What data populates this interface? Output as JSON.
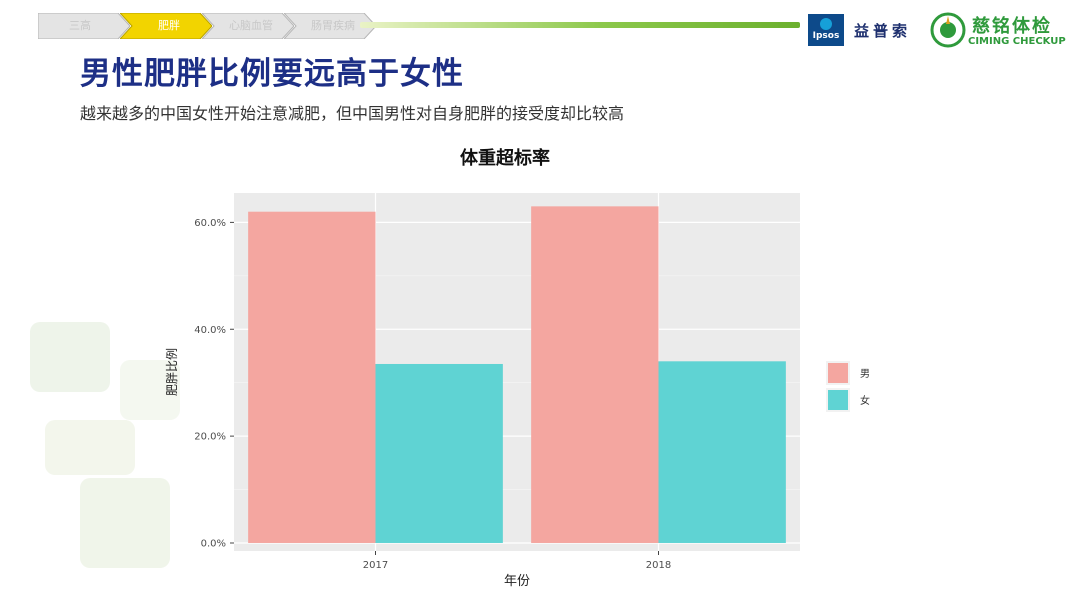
{
  "nav": {
    "steps": [
      {
        "label": "三高",
        "active": false
      },
      {
        "label": "肥胖",
        "active": true
      },
      {
        "label": "心脑血管",
        "active": false
      },
      {
        "label": "肠胃疾病",
        "active": false
      }
    ]
  },
  "logos": {
    "ipsos_text": "Ipsos",
    "ipsos_cn": "益普索",
    "ciming_cn": "慈铭体检",
    "ciming_en": "CIMING CHECKUP"
  },
  "header": {
    "title": "男性肥胖比例要远高于女性",
    "subtitle": "越来越多的中国女性开始注意减肥，但中国男性对自身肥胖的接受度却比较高"
  },
  "colors": {
    "male": "#f4a6a0",
    "female": "#5fd3d3",
    "panel": "#ebebeb",
    "title": "#1d2f86",
    "nav_active": "#f2d400"
  },
  "chart_data": {
    "type": "bar",
    "title": "体重超标率",
    "xlabel": "年份",
    "ylabel": "肥胖比例",
    "categories": [
      "2017",
      "2018"
    ],
    "series": [
      {
        "name": "男",
        "values": [
          0.62,
          0.63
        ]
      },
      {
        "name": "女",
        "values": [
          0.335,
          0.34
        ]
      }
    ],
    "ylim": [
      -0.015,
      0.655
    ],
    "yticks": [
      0,
      0.2,
      0.4,
      0.6
    ],
    "ytick_labels": [
      "0.0%",
      "20.0%",
      "40.0%",
      "60.0%"
    ],
    "grid": true,
    "legend_position": "right"
  }
}
